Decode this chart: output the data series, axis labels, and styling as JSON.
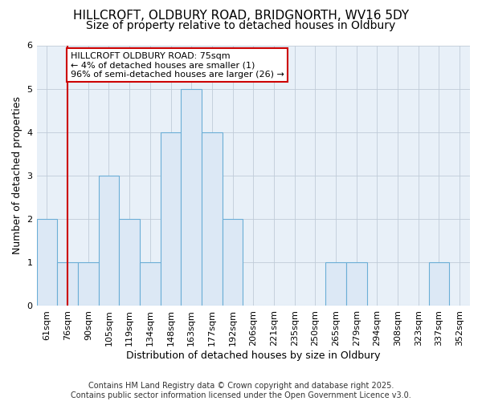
{
  "title1": "HILLCROFT, OLDBURY ROAD, BRIDGNORTH, WV16 5DY",
  "title2": "Size of property relative to detached houses in Oldbury",
  "xlabel": "Distribution of detached houses by size in Oldbury",
  "ylabel": "Number of detached properties",
  "categories": [
    "61sqm",
    "76sqm",
    "90sqm",
    "105sqm",
    "119sqm",
    "134sqm",
    "148sqm",
    "163sqm",
    "177sqm",
    "192sqm",
    "206sqm",
    "221sqm",
    "235sqm",
    "250sqm",
    "265sqm",
    "279sqm",
    "294sqm",
    "308sqm",
    "323sqm",
    "337sqm",
    "352sqm"
  ],
  "values": [
    2,
    1,
    1,
    3,
    2,
    1,
    4,
    5,
    4,
    2,
    0,
    0,
    0,
    0,
    1,
    1,
    0,
    0,
    0,
    1,
    0
  ],
  "bar_color": "#dce8f5",
  "bar_edge_color": "#6baed6",
  "property_label": "HILLCROFT OLDBURY ROAD: 75sqm",
  "annotation_line1": "← 4% of detached houses are smaller (1)",
  "annotation_line2": "96% of semi-detached houses are larger (26) →",
  "vline_color": "#cc0000",
  "vline_x_index": 1.0,
  "ylim": [
    0,
    6
  ],
  "yticks": [
    0,
    1,
    2,
    3,
    4,
    5,
    6
  ],
  "annotation_box_color": "#ffffff",
  "annotation_box_edge": "#cc0000",
  "plot_bg_color": "#e8f0f8",
  "fig_bg_color": "#ffffff",
  "footer": "Contains HM Land Registry data © Crown copyright and database right 2025.\nContains public sector information licensed under the Open Government Licence v3.0.",
  "title_fontsize": 11,
  "subtitle_fontsize": 10,
  "tick_fontsize": 8,
  "ylabel_fontsize": 9,
  "xlabel_fontsize": 9,
  "footer_fontsize": 7,
  "annotation_fontsize": 8
}
